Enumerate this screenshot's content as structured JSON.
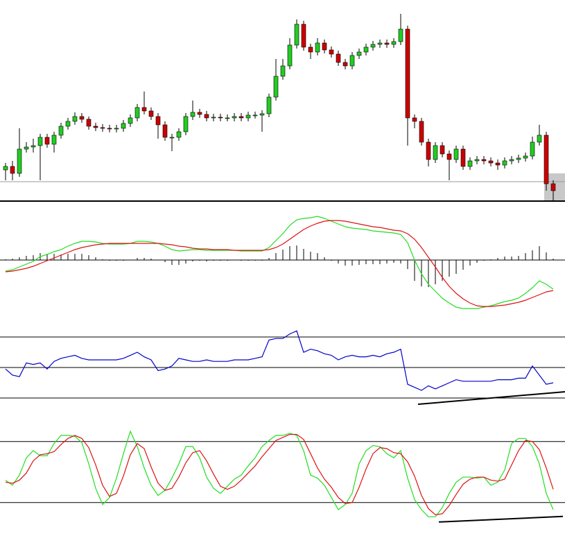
{
  "chart_data": [
    {
      "type": "candlestick",
      "xlim": [
        -0.8,
        80.7
      ],
      "ylim": [
        0,
        290
      ],
      "up_color": "#22cc22",
      "down_color": "#cc0000",
      "price_line": 28,
      "open": [
        45,
        50,
        40,
        75,
        78,
        80,
        92,
        82,
        95,
        108,
        115,
        122,
        118,
        108,
        106,
        105,
        104,
        105,
        112,
        120,
        135,
        130,
        122,
        110,
        92,
        92,
        100,
        122,
        128,
        125,
        120,
        121,
        120,
        120,
        122,
        120,
        124,
        124,
        126,
        150,
        180,
        195,
        225,
        255,
        222,
        215,
        228,
        218,
        212,
        200,
        195,
        210,
        215,
        222,
        226,
        228,
        226,
        230,
        248,
        120,
        115,
        85,
        60,
        80,
        68,
        60,
        75,
        50,
        58,
        60,
        58,
        55,
        52,
        58,
        60,
        62,
        65,
        85,
        95,
        25
      ],
      "high": [
        55,
        58,
        105,
        85,
        90,
        97,
        97,
        100,
        113,
        120,
        128,
        127,
        122,
        113,
        111,
        110,
        110,
        117,
        125,
        140,
        158,
        135,
        127,
        115,
        97,
        105,
        127,
        145,
        133,
        130,
        126,
        126,
        125,
        127,
        127,
        129,
        129,
        131,
        155,
        205,
        205,
        235,
        262,
        260,
        227,
        235,
        233,
        223,
        217,
        205,
        215,
        220,
        227,
        231,
        233,
        233,
        235,
        270,
        253,
        125,
        120,
        90,
        85,
        85,
        73,
        80,
        80,
        63,
        65,
        65,
        63,
        60,
        63,
        65,
        67,
        70,
        93,
        110,
        100,
        30
      ],
      "low": [
        30,
        30,
        35,
        70,
        70,
        30,
        77,
        70,
        90,
        103,
        110,
        113,
        103,
        101,
        100,
        99,
        99,
        100,
        107,
        115,
        125,
        117,
        90,
        87,
        72,
        87,
        95,
        117,
        120,
        115,
        115,
        115,
        115,
        115,
        115,
        115,
        119,
        100,
        121,
        145,
        175,
        190,
        220,
        217,
        205,
        210,
        213,
        207,
        195,
        190,
        190,
        205,
        210,
        217,
        221,
        221,
        221,
        225,
        80,
        105,
        80,
        50,
        55,
        63,
        30,
        55,
        45,
        45,
        53,
        53,
        50,
        45,
        47,
        53,
        55,
        57,
        60,
        80,
        15,
        0
      ],
      "close": [
        50,
        40,
        75,
        78,
        80,
        92,
        82,
        95,
        108,
        115,
        122,
        118,
        108,
        106,
        105,
        104,
        105,
        112,
        120,
        135,
        130,
        122,
        110,
        92,
        92,
        100,
        122,
        128,
        125,
        120,
        121,
        120,
        120,
        122,
        120,
        124,
        124,
        126,
        150,
        180,
        195,
        225,
        255,
        222,
        215,
        228,
        218,
        212,
        200,
        195,
        210,
        215,
        222,
        226,
        228,
        226,
        230,
        248,
        120,
        115,
        85,
        60,
        80,
        68,
        60,
        75,
        50,
        58,
        60,
        58,
        55,
        52,
        58,
        60,
        62,
        65,
        85,
        95,
        25,
        15
      ]
    },
    {
      "type": "macd",
      "xlim": [
        -0.8,
        80.7
      ],
      "ylim": [
        -85,
        80
      ],
      "series": [
        {
          "color": "#22dd22",
          "values": [
            -16,
            -14,
            -10,
            -6,
            -2,
            5,
            8,
            12,
            15,
            20,
            24,
            27,
            27,
            26,
            24,
            23,
            23,
            23,
            24,
            27,
            27,
            26,
            24,
            20,
            15,
            13,
            14,
            15,
            15,
            14,
            14,
            14,
            14,
            14,
            13,
            13,
            13,
            13,
            18,
            28,
            38,
            50,
            58,
            60,
            61,
            63,
            60,
            56,
            52,
            48,
            46,
            45,
            44,
            42,
            41,
            40,
            39,
            37,
            25,
            0,
            -20,
            -35,
            -45,
            -55,
            -62,
            -68,
            -70,
            -70,
            -70,
            -68,
            -66,
            -63,
            -60,
            -58,
            -55,
            -48,
            -40,
            -30,
            -35,
            -42
          ]
        },
        {
          "color": "#dd1111",
          "values": [
            -17,
            -16,
            -14,
            -12,
            -9,
            -5,
            -1,
            3,
            7,
            11,
            15,
            18,
            20,
            22,
            23,
            24,
            24,
            24,
            24,
            24,
            24,
            24,
            24,
            23,
            22,
            20,
            19,
            17,
            16,
            16,
            15,
            15,
            15,
            14,
            14,
            14,
            14,
            14,
            15,
            18,
            23,
            30,
            37,
            44,
            49,
            53,
            56,
            57,
            57,
            56,
            54,
            52,
            50,
            48,
            47,
            45,
            43,
            42,
            38,
            30,
            18,
            4,
            -10,
            -25,
            -38,
            -48,
            -56,
            -62,
            -66,
            -67,
            -67,
            -66,
            -65,
            -63,
            -61,
            -58,
            -54,
            -50,
            -46,
            -44
          ]
        }
      ],
      "histogram": [
        1,
        2,
        4,
        6,
        7,
        10,
        9,
        9,
        8,
        9,
        9,
        9,
        7,
        4,
        1,
        -1,
        -1,
        -1,
        0,
        3,
        3,
        2,
        0,
        -3,
        -7,
        -7,
        -5,
        -2,
        -1,
        -2,
        -1,
        -1,
        -1,
        0,
        -1,
        -1,
        -1,
        -1,
        3,
        10,
        15,
        20,
        21,
        16,
        12,
        10,
        4,
        -1,
        -5,
        -8,
        -8,
        -7,
        -6,
        -6,
        -6,
        -5,
        -4,
        -5,
        -13,
        -30,
        -38,
        -39,
        -35,
        -30,
        -24,
        -20,
        -14,
        -8,
        -4,
        -1,
        1,
        3,
        5,
        5,
        6,
        10,
        14,
        20,
        11,
        2
      ],
      "histogram_color": "#000000"
    },
    {
      "type": "line",
      "xlim": [
        -0.8,
        80.7
      ],
      "ylim": [
        25,
        75
      ],
      "levels": [
        30,
        50,
        70
      ],
      "series": [
        {
          "color": "#0000cc",
          "values": [
            49,
            45,
            44,
            53,
            52,
            53,
            49,
            54,
            56,
            57,
            58,
            56,
            55,
            55,
            55,
            55,
            55,
            56,
            58,
            60,
            57,
            55,
            48,
            49,
            51,
            56,
            55,
            54,
            54,
            55,
            54,
            54,
            54,
            55,
            55,
            55,
            56,
            57,
            68,
            69,
            69,
            72,
            74,
            60,
            62,
            61,
            59,
            58,
            55,
            57,
            58,
            57,
            57,
            58,
            57,
            59,
            60,
            62,
            39,
            37,
            35,
            38,
            36,
            38,
            40,
            42,
            41,
            41,
            41,
            41,
            41,
            42,
            42,
            42,
            43,
            43,
            51,
            45,
            39,
            40
          ]
        }
      ],
      "trendline": {
        "x": [
          59.5,
          80.7
        ],
        "y": [
          25.9,
          34.1
        ]
      }
    },
    {
      "type": "line",
      "xlim": [
        -0.8,
        80.7
      ],
      "ylim": [
        -4,
        105
      ],
      "levels": [
        20,
        80
      ],
      "series": [
        {
          "color": "#22dd22",
          "values": [
            42,
            37,
            47,
            64,
            71,
            66,
            66,
            78,
            86,
            86,
            85,
            79,
            58,
            34,
            18,
            25,
            44,
            68,
            90,
            75,
            54,
            37,
            27,
            32,
            44,
            58,
            75,
            75,
            64,
            45,
            34,
            29,
            36,
            43,
            47,
            56,
            64,
            75,
            81,
            86,
            86,
            88,
            86,
            71,
            47,
            44,
            37,
            25,
            13,
            18,
            29,
            58,
            71,
            76,
            75,
            68,
            64,
            71,
            44,
            23,
            13,
            6,
            6,
            15,
            29,
            40,
            45,
            45,
            44,
            45,
            37,
            40,
            52,
            78,
            83,
            83,
            75,
            58,
            29,
            13
          ]
        },
        {
          "color": "#dd1111",
          "values": [
            40,
            39,
            42,
            49,
            61,
            67,
            68,
            70,
            77,
            83,
            86,
            83,
            74,
            57,
            37,
            26,
            29,
            46,
            67,
            78,
            73,
            55,
            39,
            32,
            34,
            45,
            59,
            69,
            71,
            61,
            48,
            36,
            33,
            36,
            42,
            49,
            56,
            65,
            73,
            81,
            84,
            87,
            87,
            82,
            68,
            54,
            43,
            35,
            25,
            19,
            20,
            35,
            53,
            68,
            74,
            73,
            69,
            68,
            60,
            46,
            27,
            14,
            8,
            9,
            17,
            28,
            38,
            43,
            45,
            45,
            42,
            41,
            43,
            57,
            71,
            81,
            80,
            72,
            54,
            33
          ]
        }
      ],
      "trendline": {
        "x": [
          62.5,
          80.4
        ],
        "y": [
          0.9,
          6.4
        ]
      }
    }
  ]
}
